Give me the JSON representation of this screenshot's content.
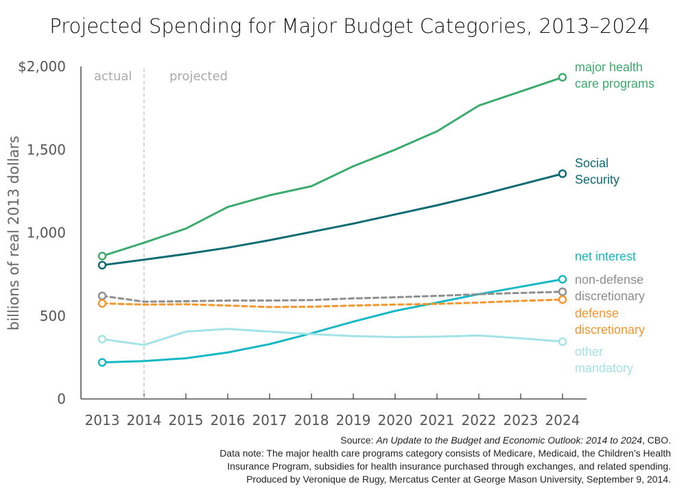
{
  "chart_data": {
    "type": "line",
    "title": "Projected Spending for Major Budget Categories, 2013–2024",
    "ylabel": "billions of real 2013 dollars",
    "xlabel": "",
    "x": [
      2013,
      2014,
      2015,
      2016,
      2017,
      2018,
      2019,
      2020,
      2021,
      2022,
      2023,
      2024
    ],
    "x_tick_labels": [
      "2013",
      "2014",
      "2015",
      "2016",
      "2017",
      "2018",
      "2019",
      "2020",
      "2021",
      "2022",
      "2023",
      "2024"
    ],
    "ylim": [
      0,
      2000
    ],
    "y_ticks": [
      0,
      500,
      1000,
      1500,
      2000
    ],
    "y_tick_labels": [
      "0",
      "500",
      "1,000",
      "1,500",
      "$2,000"
    ],
    "grid": false,
    "regions": {
      "actual_label": "actual",
      "projected_label": "projected",
      "divider_x": 2014
    },
    "series": [
      {
        "name": "major health care programs",
        "label_lines": [
          "major health",
          "care programs"
        ],
        "color": "#3aab6c",
        "dashed": false,
        "values": [
          860,
          940,
          1025,
          1155,
          1225,
          1280,
          1400,
          1500,
          1610,
          1765,
          1850,
          1935
        ]
      },
      {
        "name": "Social Security",
        "label_lines": [
          "Social",
          "Security"
        ],
        "color": "#0b6b73",
        "dashed": false,
        "values": [
          805,
          838,
          872,
          910,
          955,
          1005,
          1055,
          1110,
          1165,
          1225,
          1290,
          1355
        ]
      },
      {
        "name": "net interest",
        "label_lines": [
          "net interest"
        ],
        "color": "#15b8c4",
        "dashed": false,
        "values": [
          220,
          228,
          245,
          280,
          330,
          395,
          465,
          530,
          580,
          630,
          675,
          720
        ]
      },
      {
        "name": "non-defense discretionary",
        "label_lines": [
          "non-defense",
          "discretionary"
        ],
        "color": "#8e8e8e",
        "dashed": true,
        "values": [
          620,
          585,
          588,
          592,
          592,
          595,
          605,
          612,
          620,
          630,
          638,
          645
        ]
      },
      {
        "name": "defense discretionary",
        "label_lines": [
          "defense",
          "discretionary"
        ],
        "color": "#f5962c",
        "dashed": true,
        "values": [
          575,
          568,
          570,
          562,
          553,
          555,
          562,
          568,
          572,
          580,
          590,
          598
        ]
      },
      {
        "name": "other mandatory",
        "label_lines": [
          "other",
          "mandatory"
        ],
        "color": "#a3e2e6",
        "dashed": false,
        "values": [
          360,
          325,
          405,
          422,
          405,
          390,
          378,
          372,
          375,
          382,
          365,
          345
        ]
      }
    ]
  },
  "source": {
    "prefix": "Source: ",
    "italic": "An Update to the Budget and Economic Outlook: 2014 to 2024",
    "suffix": ", CBO.",
    "note_line1": "Data note: The major health care programs category consists of Medicare, Medicaid, the Children’s Health",
    "note_line2": "Insurance Program, subsidies for health insurance purchased through exchanges, and related spending.",
    "produced_by": "Produced by Veronique de Rugy, Mercatus Center at George Mason University, September 9, 2014."
  }
}
